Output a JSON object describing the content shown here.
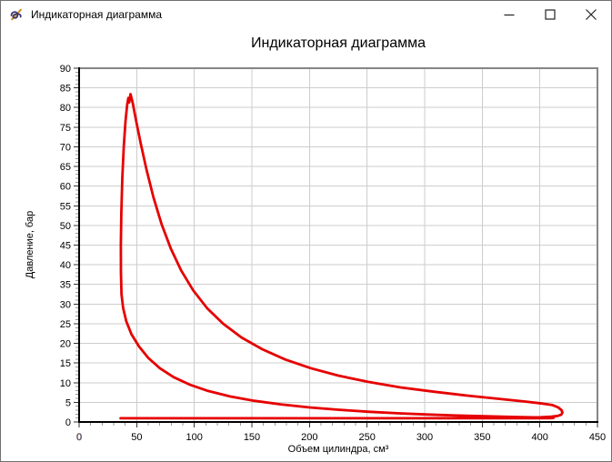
{
  "window": {
    "title": "Индикаторная диаграмма",
    "icon": "scribble-pen-icon",
    "controls": {
      "minimize": "minimize",
      "maximize": "maximize",
      "close": "close"
    }
  },
  "chart_data": {
    "type": "line",
    "title": "Индикаторная диаграмма",
    "xlabel": "Объем цилиндра, см³",
    "ylabel": "Давление, бар",
    "xlim": [
      0,
      450
    ],
    "ylim": [
      0,
      90
    ],
    "x_ticks": [
      0,
      50,
      100,
      150,
      200,
      250,
      300,
      350,
      400,
      450
    ],
    "y_ticks": [
      0,
      5,
      10,
      15,
      20,
      25,
      30,
      35,
      40,
      45,
      50,
      55,
      60,
      65,
      70,
      75,
      80,
      85,
      90
    ],
    "x_minor_step": 10,
    "y_minor_step": 1,
    "grid": true,
    "legend": "none",
    "highlighted_x_tick": {
      "value": 0,
      "fill": "#2553b8",
      "outline": "#e58b1f"
    },
    "colors": {
      "series": "#e60000",
      "grid": "#cdcdcd",
      "axis": "#000000",
      "plot_border": "#868686",
      "major_tick": "#333333",
      "minor_tick": "#999999",
      "text": "#000000"
    },
    "series": [
      {
        "name": "indicator-loop",
        "color": "#e60000",
        "points": [
          [
            36,
            0.95
          ],
          [
            80,
            0.95
          ],
          [
            140,
            0.95
          ],
          [
            200,
            0.95
          ],
          [
            260,
            0.95
          ],
          [
            320,
            0.95
          ],
          [
            370,
            0.96
          ],
          [
            400,
            0.98
          ],
          [
            411,
            1.0
          ],
          [
            412,
            1.08
          ],
          [
            395,
            1.18
          ],
          [
            375,
            1.3
          ],
          [
            352,
            1.45
          ],
          [
            328,
            1.65
          ],
          [
            303,
            1.9
          ],
          [
            278,
            2.2
          ],
          [
            252,
            2.6
          ],
          [
            226,
            3.1
          ],
          [
            200,
            3.7
          ],
          [
            175,
            4.5
          ],
          [
            152,
            5.4
          ],
          [
            131,
            6.5
          ],
          [
            112,
            7.9
          ],
          [
            96,
            9.5
          ],
          [
            82,
            11.4
          ],
          [
            70,
            13.7
          ],
          [
            60,
            16.3
          ],
          [
            52,
            19.2
          ],
          [
            45.5,
            22.3
          ],
          [
            41,
            25.6
          ],
          [
            38.2,
            29.0
          ],
          [
            36.8,
            32.5
          ],
          [
            36.3,
            38
          ],
          [
            36.2,
            45
          ],
          [
            36.6,
            53
          ],
          [
            37.5,
            62
          ],
          [
            38.8,
            70
          ],
          [
            40.3,
            76.5
          ],
          [
            41.7,
            80.6
          ],
          [
            42.7,
            82.4
          ],
          [
            43.5,
            81.3
          ],
          [
            44.6,
            83.4
          ],
          [
            46.5,
            81.2
          ],
          [
            49.5,
            76.6
          ],
          [
            53.5,
            70.8
          ],
          [
            58.5,
            64.2
          ],
          [
            64.5,
            57.2
          ],
          [
            71.5,
            50.4
          ],
          [
            79.5,
            44.2
          ],
          [
            88.5,
            38.6
          ],
          [
            99,
            33.5
          ],
          [
            111,
            29.0
          ],
          [
            125,
            25.0
          ],
          [
            141,
            21.5
          ],
          [
            159,
            18.5
          ],
          [
            179,
            15.9
          ],
          [
            201,
            13.7
          ],
          [
            225,
            11.8
          ],
          [
            251,
            10.2
          ],
          [
            279,
            8.8
          ],
          [
            308,
            7.7
          ],
          [
            337,
            6.7
          ],
          [
            364,
            5.9
          ],
          [
            387,
            5.2
          ],
          [
            402,
            4.7
          ],
          [
            411,
            4.3
          ],
          [
            416,
            3.7
          ],
          [
            418.8,
            3.0
          ],
          [
            419.6,
            2.4
          ],
          [
            418.6,
            1.85
          ],
          [
            415.5,
            1.55
          ],
          [
            410,
            1.35
          ],
          [
            401,
            1.2
          ],
          [
            388,
            1.1
          ],
          [
            371,
            1.03
          ],
          [
            350,
            0.99
          ],
          [
            326,
            0.97
          ],
          [
            303,
            0.96
          ]
        ]
      }
    ]
  }
}
